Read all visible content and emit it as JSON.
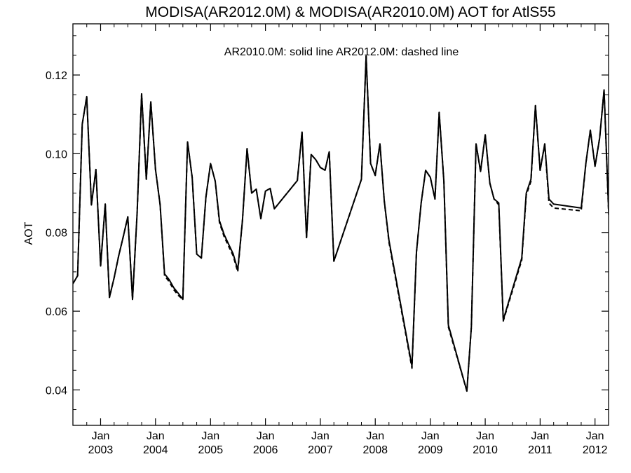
{
  "chart_data": {
    "type": "line",
    "title": "MODISA(AR2012.0M) & MODISA(AR2010.0M)  AOT for AtlS55",
    "subtitle": "AR2010.0M: solid line   AR2012.0M: dashed line",
    "xlabel": "",
    "ylabel": "AOT",
    "x_ticks": [
      {
        "date": "2003-01-01",
        "month": "Jan",
        "year": "2003"
      },
      {
        "date": "2004-01-01",
        "month": "Jan",
        "year": "2004"
      },
      {
        "date": "2005-01-01",
        "month": "Jan",
        "year": "2005"
      },
      {
        "date": "2006-01-01",
        "month": "Jan",
        "year": "2006"
      },
      {
        "date": "2007-01-01",
        "month": "Jan",
        "year": "2007"
      },
      {
        "date": "2008-01-01",
        "month": "Jan",
        "year": "2008"
      },
      {
        "date": "2009-01-01",
        "month": "Jan",
        "year": "2009"
      },
      {
        "date": "2010-01-01",
        "month": "Jan",
        "year": "2010"
      },
      {
        "date": "2011-01-01",
        "month": "Jan",
        "year": "2011"
      },
      {
        "date": "2012-01-01",
        "month": "Jan",
        "year": "2012"
      }
    ],
    "y_ticks": [
      "0.04",
      "0.06",
      "0.08",
      "0.10",
      "0.12"
    ],
    "xlim": [
      "2002-07-01",
      "2012-03-31"
    ],
    "ylim": [
      0.031,
      0.133
    ],
    "grid": false,
    "series": [
      {
        "name": "AR2010.0M",
        "style": "solid",
        "color": "#000000",
        "points": [
          [
            "2002-07-01",
            0.067
          ],
          [
            "2002-08-01",
            0.069
          ],
          [
            "2002-09-01",
            0.1075
          ],
          [
            "2002-10-01",
            0.1145
          ],
          [
            "2002-11-01",
            0.087
          ],
          [
            "2002-12-01",
            0.096
          ],
          [
            "2003-01-01",
            0.0715
          ],
          [
            "2003-02-01",
            0.0872
          ],
          [
            "2003-03-01",
            0.0635
          ],
          [
            "2003-04-01",
            0.0685
          ],
          [
            "2003-05-01",
            0.074
          ],
          [
            "2003-06-01",
            0.079
          ],
          [
            "2003-07-01",
            0.084
          ],
          [
            "2003-08-01",
            0.063
          ],
          [
            "2003-09-01",
            0.085
          ],
          [
            "2003-10-01",
            0.1152
          ],
          [
            "2003-11-01",
            0.0935
          ],
          [
            "2003-12-01",
            0.1132
          ],
          [
            "2004-01-01",
            0.096
          ],
          [
            "2004-02-01",
            0.087
          ],
          [
            "2004-03-01",
            0.0695
          ],
          [
            "2004-04-01",
            0.068
          ],
          [
            "2004-05-01",
            0.066
          ],
          [
            "2004-06-01",
            0.0645
          ],
          [
            "2004-07-01",
            0.063
          ],
          [
            "2004-08-01",
            0.103
          ],
          [
            "2004-09-01",
            0.094
          ],
          [
            "2004-10-01",
            0.0745
          ],
          [
            "2004-11-01",
            0.0735
          ],
          [
            "2004-12-01",
            0.089
          ],
          [
            "2005-01-01",
            0.0975
          ],
          [
            "2005-02-01",
            0.093
          ],
          [
            "2005-03-01",
            0.083
          ],
          [
            "2005-04-01",
            0.0795
          ],
          [
            "2005-05-01",
            0.077
          ],
          [
            "2005-06-01",
            0.0745
          ],
          [
            "2005-07-01",
            0.0705
          ],
          [
            "2005-08-01",
            0.083
          ],
          [
            "2005-09-01",
            0.1013
          ],
          [
            "2005-10-01",
            0.09
          ],
          [
            "2005-11-01",
            0.091
          ],
          [
            "2005-12-01",
            0.0835
          ],
          [
            "2006-01-01",
            0.0905
          ],
          [
            "2006-02-01",
            0.0912
          ],
          [
            "2006-03-01",
            0.086
          ],
          [
            "2006-08-01",
            0.0932
          ],
          [
            "2006-09-01",
            0.1055
          ],
          [
            "2006-10-01",
            0.0787
          ],
          [
            "2006-11-01",
            0.0998
          ],
          [
            "2006-12-01",
            0.0985
          ],
          [
            "2007-01-01",
            0.0965
          ],
          [
            "2007-02-01",
            0.0958
          ],
          [
            "2007-03-01",
            0.1005
          ],
          [
            "2007-04-01",
            0.0727
          ],
          [
            "2007-10-01",
            0.0935
          ],
          [
            "2007-11-01",
            0.1248
          ],
          [
            "2007-12-01",
            0.0975
          ],
          [
            "2008-01-01",
            0.0945
          ],
          [
            "2008-02-01",
            0.1025
          ],
          [
            "2008-03-01",
            0.088
          ],
          [
            "2008-04-01",
            0.078
          ],
          [
            "2008-09-01",
            0.046
          ],
          [
            "2008-10-01",
            0.075
          ],
          [
            "2008-11-01",
            0.0875
          ],
          [
            "2008-12-01",
            0.0958
          ],
          [
            "2009-01-01",
            0.094
          ],
          [
            "2009-02-01",
            0.0885
          ],
          [
            "2009-03-01",
            0.1105
          ],
          [
            "2009-04-01",
            0.093
          ],
          [
            "2009-05-01",
            0.0565
          ],
          [
            "2009-09-01",
            0.0397
          ],
          [
            "2009-10-01",
            0.056
          ],
          [
            "2009-11-01",
            0.1025
          ],
          [
            "2009-12-01",
            0.0955
          ],
          [
            "2010-01-01",
            0.1048
          ],
          [
            "2010-02-01",
            0.0925
          ],
          [
            "2010-03-01",
            0.0885
          ],
          [
            "2010-04-01",
            0.0875
          ],
          [
            "2010-05-01",
            0.0578
          ],
          [
            "2010-09-01",
            0.0735
          ],
          [
            "2010-10-01",
            0.09
          ],
          [
            "2010-11-01",
            0.0935
          ],
          [
            "2010-12-01",
            0.1122
          ],
          [
            "2011-01-01",
            0.0958
          ],
          [
            "2011-02-01",
            0.1025
          ],
          [
            "2011-03-01",
            0.0885
          ],
          [
            "2011-04-01",
            0.0872
          ],
          [
            "2011-10-01",
            0.0862
          ],
          [
            "2011-11-01",
            0.0975
          ],
          [
            "2011-12-01",
            0.106
          ],
          [
            "2012-01-01",
            0.0968
          ],
          [
            "2012-02-01",
            0.104
          ],
          [
            "2012-03-01",
            0.1162
          ],
          [
            "2012-04-01",
            0.085
          ]
        ]
      },
      {
        "name": "AR2012.0M",
        "style": "dashed",
        "color": "#000000",
        "points": [
          [
            "2002-07-01",
            0.067
          ],
          [
            "2002-08-01",
            0.069
          ],
          [
            "2002-09-01",
            0.1075
          ],
          [
            "2002-10-01",
            0.1145
          ],
          [
            "2002-11-01",
            0.087
          ],
          [
            "2002-12-01",
            0.096
          ],
          [
            "2003-01-01",
            0.0715
          ],
          [
            "2003-02-01",
            0.0872
          ],
          [
            "2003-03-01",
            0.0635
          ],
          [
            "2003-04-01",
            0.0685
          ],
          [
            "2003-05-01",
            0.074
          ],
          [
            "2003-06-01",
            0.079
          ],
          [
            "2003-07-01",
            0.084
          ],
          [
            "2003-08-01",
            0.063
          ],
          [
            "2003-09-01",
            0.085
          ],
          [
            "2003-10-01",
            0.1152
          ],
          [
            "2003-11-01",
            0.0935
          ],
          [
            "2003-12-01",
            0.1132
          ],
          [
            "2004-01-01",
            0.096
          ],
          [
            "2004-02-01",
            0.087
          ],
          [
            "2004-03-01",
            0.069
          ],
          [
            "2004-04-01",
            0.0675
          ],
          [
            "2004-05-01",
            0.0655
          ],
          [
            "2004-06-01",
            0.064
          ],
          [
            "2004-07-01",
            0.063
          ],
          [
            "2004-08-01",
            0.103
          ],
          [
            "2004-09-01",
            0.094
          ],
          [
            "2004-10-01",
            0.0745
          ],
          [
            "2004-11-01",
            0.0735
          ],
          [
            "2004-12-01",
            0.089
          ],
          [
            "2005-01-01",
            0.0975
          ],
          [
            "2005-02-01",
            0.093
          ],
          [
            "2005-03-01",
            0.0825
          ],
          [
            "2005-04-01",
            0.079
          ],
          [
            "2005-05-01",
            0.0765
          ],
          [
            "2005-06-01",
            0.074
          ],
          [
            "2005-07-01",
            0.07
          ],
          [
            "2005-08-01",
            0.083
          ],
          [
            "2005-09-01",
            0.1013
          ],
          [
            "2005-10-01",
            0.09
          ],
          [
            "2005-11-01",
            0.091
          ],
          [
            "2005-12-01",
            0.0835
          ],
          [
            "2006-01-01",
            0.0905
          ],
          [
            "2006-02-01",
            0.0912
          ],
          [
            "2006-03-01",
            0.086
          ],
          [
            "2006-08-01",
            0.0932
          ],
          [
            "2006-09-01",
            0.1055
          ],
          [
            "2006-10-01",
            0.0787
          ],
          [
            "2006-11-01",
            0.0998
          ],
          [
            "2006-12-01",
            0.0985
          ],
          [
            "2007-01-01",
            0.0965
          ],
          [
            "2007-02-01",
            0.0958
          ],
          [
            "2007-03-01",
            0.1005
          ],
          [
            "2007-04-01",
            0.0727
          ],
          [
            "2007-10-01",
            0.0935
          ],
          [
            "2007-11-01",
            0.1248
          ],
          [
            "2007-12-01",
            0.0975
          ],
          [
            "2008-01-01",
            0.0945
          ],
          [
            "2008-02-01",
            0.1025
          ],
          [
            "2008-03-01",
            0.088
          ],
          [
            "2008-04-01",
            0.0775
          ],
          [
            "2008-09-01",
            0.0455
          ],
          [
            "2008-10-01",
            0.075
          ],
          [
            "2008-11-01",
            0.0875
          ],
          [
            "2008-12-01",
            0.0958
          ],
          [
            "2009-01-01",
            0.094
          ],
          [
            "2009-02-01",
            0.0885
          ],
          [
            "2009-03-01",
            0.1105
          ],
          [
            "2009-04-01",
            0.093
          ],
          [
            "2009-05-01",
            0.056
          ],
          [
            "2009-09-01",
            0.0397
          ],
          [
            "2009-10-01",
            0.056
          ],
          [
            "2009-11-01",
            0.1025
          ],
          [
            "2009-12-01",
            0.0955
          ],
          [
            "2010-01-01",
            0.1048
          ],
          [
            "2010-02-01",
            0.0925
          ],
          [
            "2010-03-01",
            0.0885
          ],
          [
            "2010-04-01",
            0.087
          ],
          [
            "2010-05-01",
            0.0575
          ],
          [
            "2010-09-01",
            0.073
          ],
          [
            "2010-10-01",
            0.0895
          ],
          [
            "2010-11-01",
            0.093
          ],
          [
            "2010-12-01",
            0.1122
          ],
          [
            "2011-01-01",
            0.0958
          ],
          [
            "2011-02-01",
            0.1025
          ],
          [
            "2011-03-01",
            0.0875
          ],
          [
            "2011-04-01",
            0.0862
          ],
          [
            "2011-10-01",
            0.0855
          ],
          [
            "2011-11-01",
            0.0975
          ],
          [
            "2011-12-01",
            0.106
          ],
          [
            "2012-01-01",
            0.0968
          ],
          [
            "2012-02-01",
            0.104
          ],
          [
            "2012-03-01",
            0.1162
          ],
          [
            "2012-04-01",
            0.0845
          ]
        ]
      }
    ]
  }
}
